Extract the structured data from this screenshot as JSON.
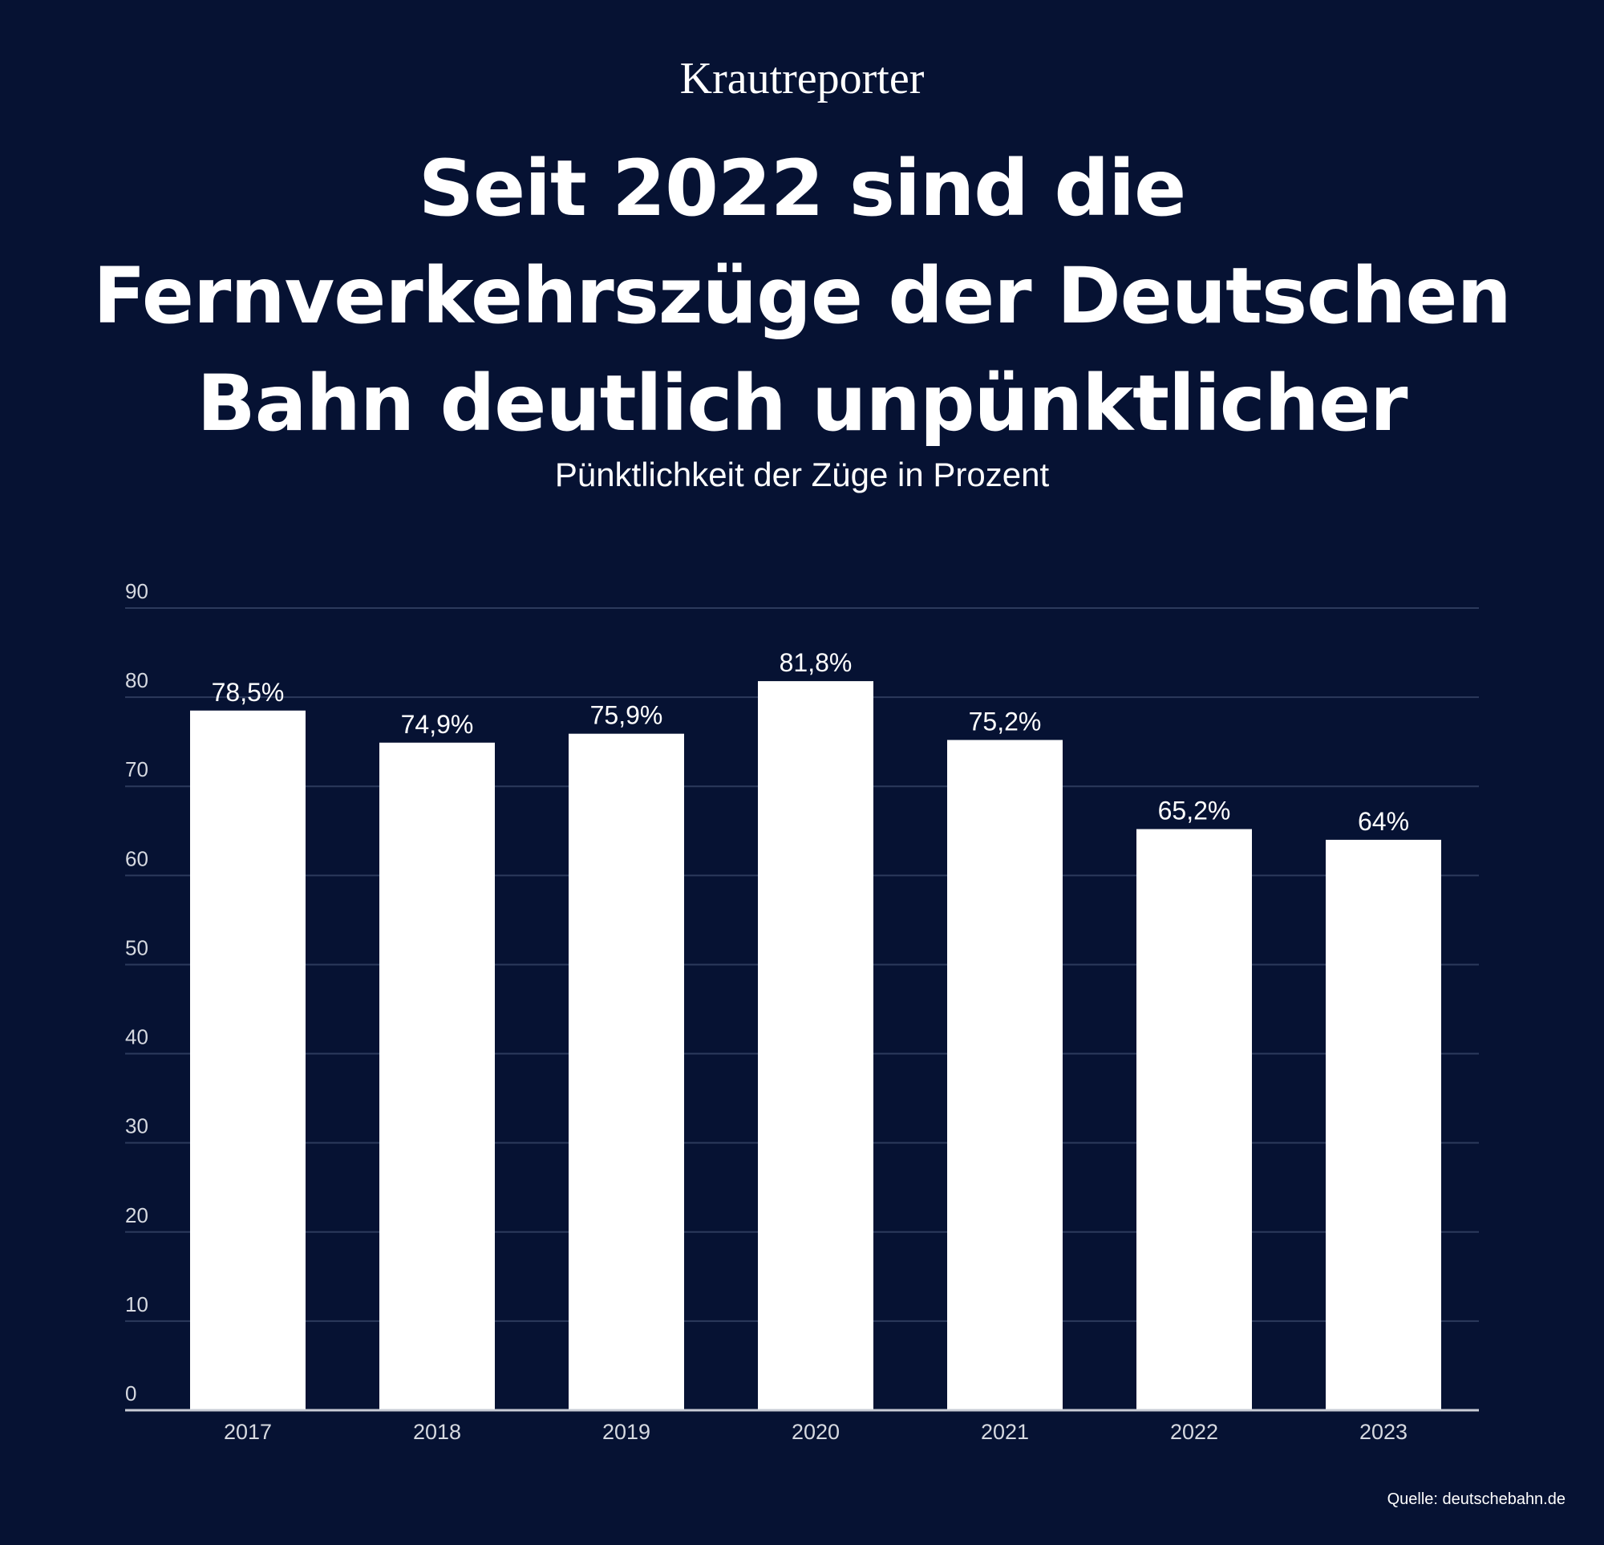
{
  "brand": "Krautreporter",
  "title_lines": [
    "Seit 2022 sind die",
    "Fernverkehrszüge der Deutschen",
    "Bahn deutlich unpünktlicher"
  ],
  "subtitle": "Pünktlichkeit der Züge in Prozent",
  "source": "Quelle: deutschebahn.de",
  "colors": {
    "background": "#061233",
    "bar": "#ffffff",
    "gridline": "#2c3a5c",
    "axis": "#c8ccd6",
    "tick_text": "#d6d9e0"
  },
  "chart_data": {
    "type": "bar",
    "title": "Seit 2022 sind die Fernverkehrszüge der Deutschen Bahn deutlich unpünktlicher",
    "subtitle": "Pünktlichkeit der Züge in Prozent",
    "xlabel": "",
    "ylabel": "",
    "categories": [
      "2017",
      "2018",
      "2019",
      "2020",
      "2021",
      "2022",
      "2023"
    ],
    "values": [
      78.5,
      74.9,
      75.9,
      81.8,
      75.2,
      65.2,
      64
    ],
    "data_labels": [
      "78,5%",
      "74,9%",
      "75,9%",
      "81,8%",
      "75,2%",
      "65,2%",
      "64%"
    ],
    "ylim": [
      0,
      90
    ],
    "yticks": [
      0,
      10,
      20,
      30,
      40,
      50,
      60,
      70,
      80,
      90
    ],
    "grid": true,
    "legend": "none"
  }
}
